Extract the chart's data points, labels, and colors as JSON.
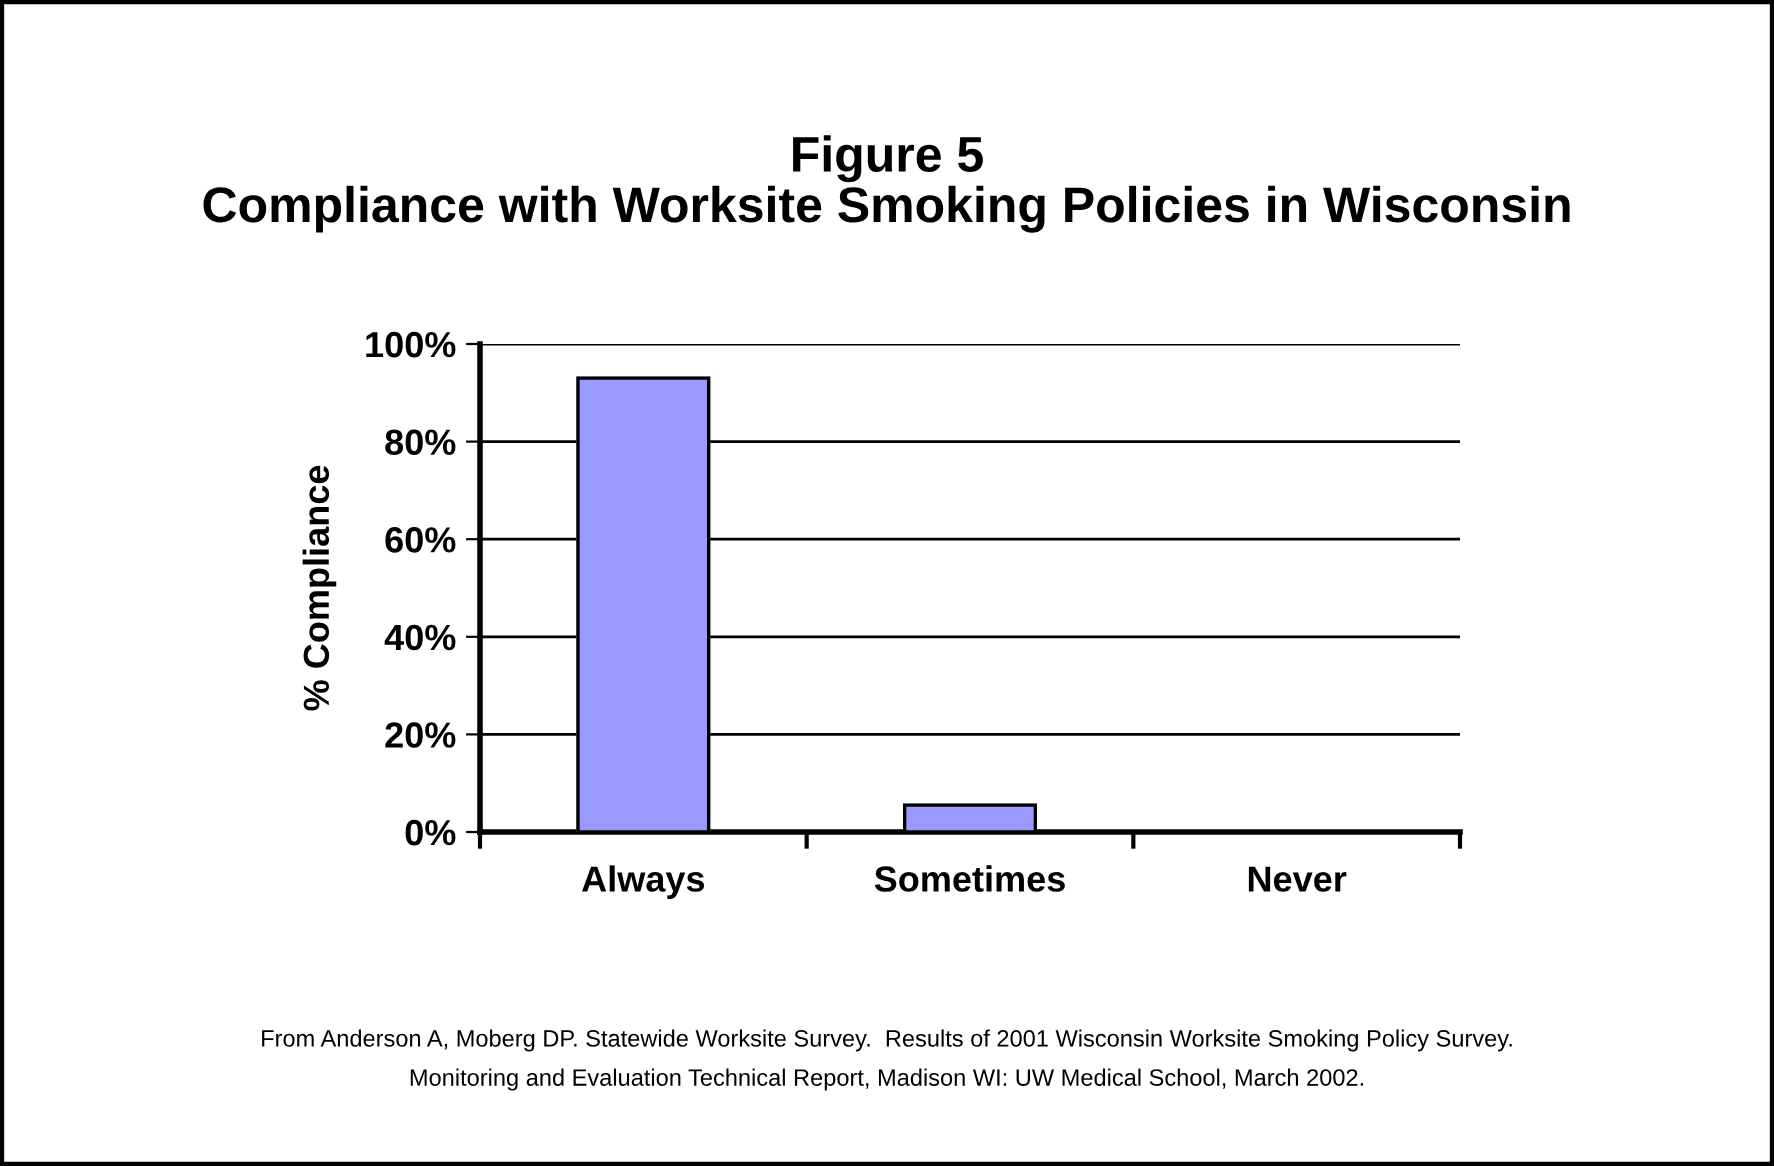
{
  "chart_data": {
    "type": "bar",
    "title": "Figure 5\nCompliance with Worksite Smoking Policies in Wisconsin",
    "ylabel": "% Compliance",
    "categories": [
      "Always",
      "Sometimes",
      "Never"
    ],
    "values": [
      93,
      5.5,
      0
    ],
    "color": "#9999ff",
    "ylim": [
      0,
      100
    ],
    "yticks": [
      {
        "value": 0,
        "label": "0%"
      },
      {
        "value": 20,
        "label": "20%"
      },
      {
        "value": 40,
        "label": "40%"
      },
      {
        "value": 60,
        "label": "60%"
      },
      {
        "value": 80,
        "label": "80%"
      },
      {
        "value": 100,
        "label": "100%"
      }
    ],
    "grid": "y",
    "legend": false,
    "annotations": [
      "From Anderson A, Moberg DP. Statewide Worksite Survey.  Results of 2001 Wisconsin Worksite Smoking Policy Survey.\nMonitoring and Evaluation Technical Report, Madison WI: UW Medical School, March 2002."
    ]
  }
}
